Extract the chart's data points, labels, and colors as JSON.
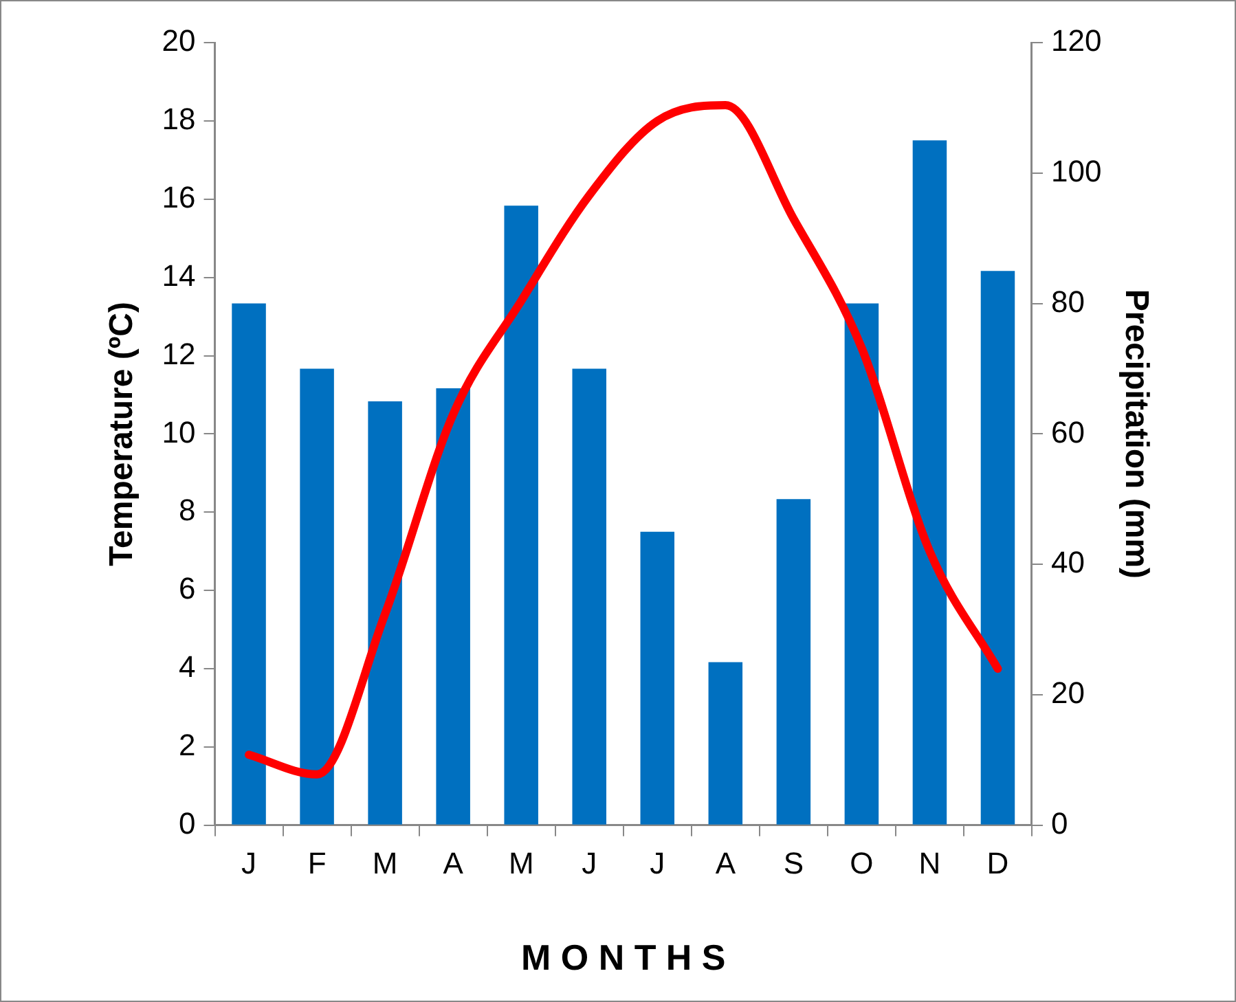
{
  "chart_data": {
    "type": "bar",
    "categories": [
      "J",
      "F",
      "M",
      "A",
      "M",
      "J",
      "J",
      "A",
      "S",
      "O",
      "N",
      "D"
    ],
    "series": [
      {
        "axis": "y2",
        "color": "#0070c0",
        "values": [
          80,
          70,
          65,
          67,
          95,
          70,
          45,
          25,
          50,
          80,
          105,
          85
        ]
      },
      {
        "type": "line",
        "axis": "y",
        "color": "#ff0000",
        "values": [
          1.8,
          1.3,
          5.4,
          10.5,
          13.4,
          16.1,
          18.0,
          18.4,
          15.5,
          12.2,
          7.0,
          4.0
        ]
      }
    ],
    "xlabel": "M O N T H S",
    "ylabel": "Temperature (ºC)",
    "y2label": "Precipitation (mm)",
    "ylim": [
      0,
      20
    ],
    "yticks": [
      0,
      2,
      4,
      6,
      8,
      10,
      12,
      14,
      16,
      18,
      20
    ],
    "y2lim": [
      0,
      120
    ],
    "y2ticks": [
      0,
      20,
      40,
      60,
      80,
      100,
      120
    ],
    "grid": false,
    "legend": false,
    "marker": "none",
    "line_style": "solid"
  }
}
